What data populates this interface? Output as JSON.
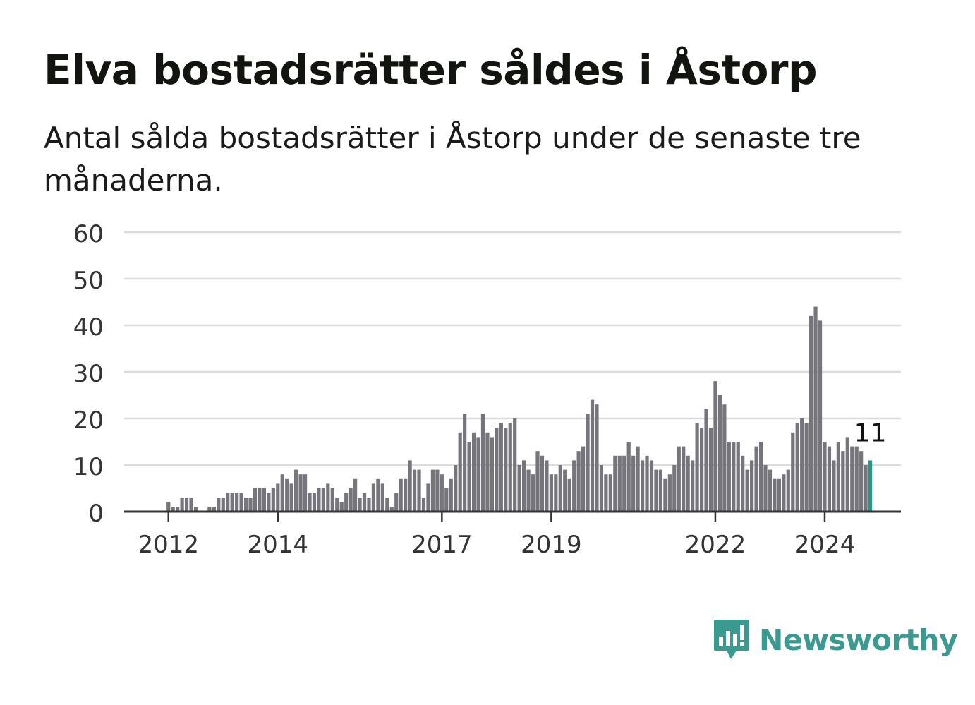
{
  "title": "Elva bostadsrätter såldes i Åstorp",
  "subtitle": "Antal sålda bostadsrätter i Åstorp under de senaste tre månaderna.",
  "brand": {
    "name": "Newsworthy"
  },
  "colors": {
    "bar": "#76757c",
    "highlight": "#1a9e8c",
    "grid": "#dcdcdc",
    "axis": "#333333",
    "text": "#333333"
  },
  "chart_data": {
    "type": "bar",
    "ylim": [
      0,
      60
    ],
    "yticks": [
      0,
      10,
      20,
      30,
      40,
      50,
      60
    ],
    "xticks": [
      {
        "label": "2012",
        "index": 9
      },
      {
        "label": "2014",
        "index": 33
      },
      {
        "label": "2017",
        "index": 69
      },
      {
        "label": "2019",
        "index": 93
      },
      {
        "label": "2022",
        "index": 129
      },
      {
        "label": "2024",
        "index": 153
      }
    ],
    "values": [
      0,
      0,
      0,
      0,
      0,
      0,
      0,
      0,
      0,
      2,
      1,
      1,
      3,
      3,
      3,
      1,
      0,
      0,
      1,
      1,
      3,
      3,
      4,
      4,
      4,
      4,
      3,
      3,
      5,
      5,
      5,
      4,
      5,
      6,
      8,
      7,
      6,
      9,
      8,
      8,
      4,
      4,
      5,
      5,
      6,
      5,
      3,
      2,
      4,
      5,
      7,
      3,
      4,
      3,
      6,
      7,
      6,
      3,
      1,
      4,
      7,
      7,
      11,
      9,
      9,
      3,
      6,
      9,
      9,
      8,
      5,
      7,
      10,
      17,
      21,
      15,
      17,
      16,
      21,
      17,
      16,
      18,
      19,
      18,
      19,
      20,
      10,
      11,
      9,
      8,
      13,
      12,
      11,
      8,
      8,
      10,
      9,
      7,
      11,
      13,
      14,
      21,
      24,
      23,
      10,
      8,
      8,
      12,
      12,
      12,
      15,
      12,
      14,
      11,
      12,
      11,
      9,
      9,
      7,
      8,
      10,
      14,
      14,
      12,
      11,
      19,
      18,
      22,
      18,
      28,
      25,
      23,
      15,
      15,
      15,
      12,
      9,
      11,
      14,
      15,
      10,
      9,
      7,
      7,
      8,
      9,
      17,
      19,
      20,
      19,
      42,
      44,
      41,
      15,
      14,
      11,
      15,
      13,
      16,
      14,
      14,
      13,
      10,
      11
    ],
    "highlight_index": 163,
    "highlight_label": "11"
  }
}
